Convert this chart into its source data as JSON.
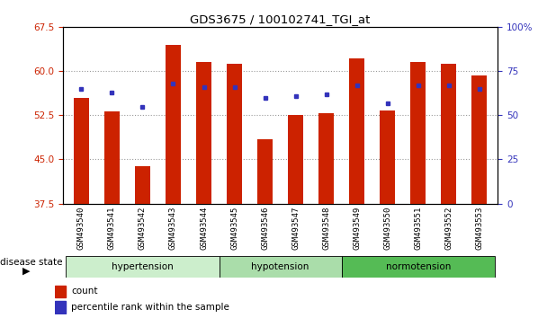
{
  "title": "GDS3675 / 100102741_TGI_at",
  "samples": [
    "GSM493540",
    "GSM493541",
    "GSM493542",
    "GSM493543",
    "GSM493544",
    "GSM493545",
    "GSM493546",
    "GSM493547",
    "GSM493548",
    "GSM493549",
    "GSM493550",
    "GSM493551",
    "GSM493552",
    "GSM493553"
  ],
  "count_values": [
    55.5,
    53.2,
    43.8,
    64.5,
    61.5,
    61.3,
    48.5,
    52.5,
    52.8,
    62.2,
    53.3,
    61.5,
    61.3,
    59.3
  ],
  "percentile_values": [
    65,
    63,
    55,
    68,
    66,
    66,
    60,
    61,
    62,
    67,
    57,
    67,
    67,
    65
  ],
  "groups": [
    {
      "name": "hypertension",
      "start": 0,
      "end": 5
    },
    {
      "name": "hypotension",
      "start": 5,
      "end": 9
    },
    {
      "name": "normotension",
      "start": 9,
      "end": 14
    }
  ],
  "group_colors": [
    "#cceecc",
    "#aaddaa",
    "#55bb55"
  ],
  "ylim_left": [
    37.5,
    67.5
  ],
  "ylim_right": [
    0,
    100
  ],
  "yticks_left": [
    37.5,
    45.0,
    52.5,
    60.0,
    67.5
  ],
  "yticks_right": [
    0,
    25,
    50,
    75,
    100
  ],
  "bar_color": "#cc2200",
  "dot_color": "#3333bb",
  "background_color": "#ffffff",
  "left_label_color": "#cc2200",
  "right_label_color": "#3333bb",
  "legend_count": "count",
  "legend_percentile": "percentile rank within the sample",
  "disease_state_label": "disease state",
  "bar_width": 0.5,
  "ybase": 37.5
}
